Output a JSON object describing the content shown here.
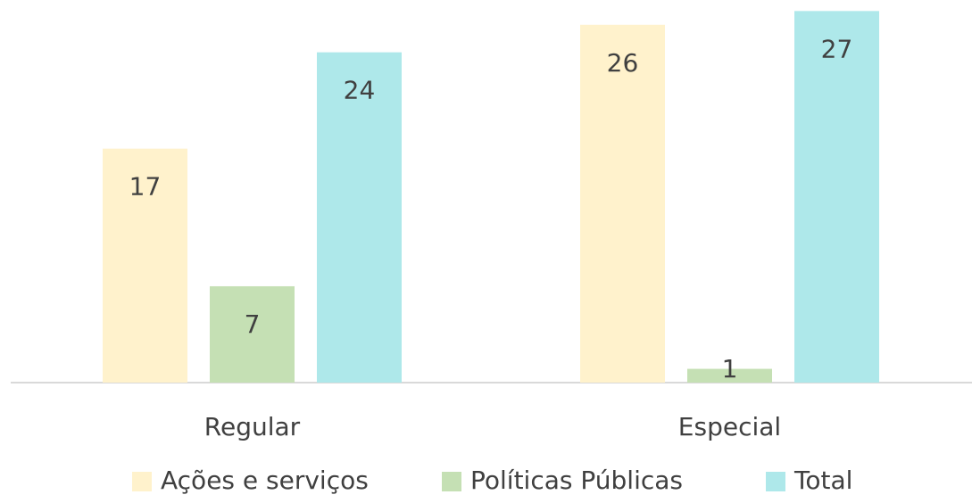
{
  "chart_data": {
    "type": "bar",
    "categories": [
      "Regular",
      "Especial"
    ],
    "series": [
      {
        "name": "Ações e serviços",
        "color": "#fff2cc",
        "values": [
          17,
          26
        ]
      },
      {
        "name": "Políticas Públicas",
        "color": "#c5e0b4",
        "values": [
          7,
          1
        ]
      },
      {
        "name": "Total",
        "color": "#aee8ea",
        "values": [
          24,
          27
        ]
      }
    ],
    "ylim": [
      0,
      27.8
    ],
    "legend": "bottom"
  }
}
